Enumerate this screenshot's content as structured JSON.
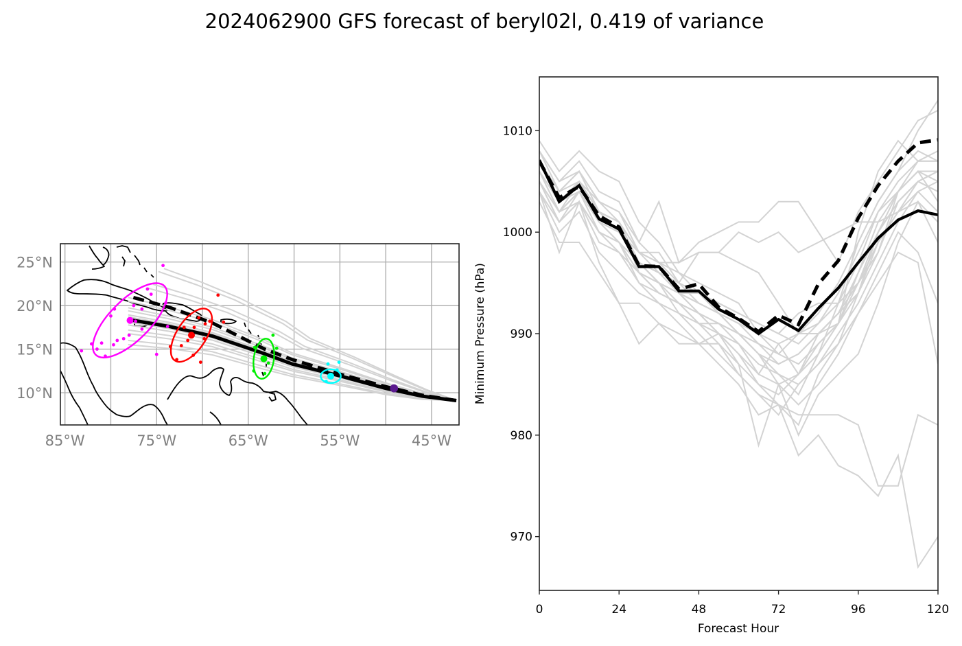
{
  "title": "2024062900 GFS forecast of beryl02l, 0.419 of variance",
  "colors": {
    "member": "#d3d3d3",
    "deterministic": "#000000",
    "coast": "#000000",
    "grid": "#b0b0b0",
    "map_label": "#808080",
    "ellipse_colors": [
      "#ff00ff",
      "#ff0000",
      "#00ee00",
      "#00ffff",
      "#5b1a8f"
    ]
  },
  "chart_data": [
    {
      "type": "scatter",
      "name": "track-map",
      "title": "",
      "xlabel": "",
      "ylabel": "",
      "xlim_lonW": [
        85.5,
        42.0
      ],
      "ylim_latN": [
        6.3,
        27.1
      ],
      "grid": true,
      "x_ticks": [
        "85°W",
        "75°W",
        "65°W",
        "55°W",
        "45°W"
      ],
      "x_tick_values": [
        85,
        75,
        65,
        55,
        45
      ],
      "y_ticks": [
        "10°N",
        "15°N",
        "20°N",
        "25°N"
      ],
      "y_tick_values": [
        10,
        15,
        20,
        25
      ],
      "deterministic_track": {
        "lonW": [
          42.3,
          46.0,
          50.0,
          54.9,
          60.2,
          63.3,
          68.9,
          73.6,
          78.1
        ],
        "latN": [
          9.1,
          9.6,
          10.5,
          11.9,
          13.3,
          14.5,
          16.5,
          17.6,
          18.4
        ]
      },
      "mean_track": {
        "lonW": [
          42.3,
          46.0,
          50.0,
          54.9,
          60.2,
          63.2,
          68.9,
          73.6,
          77.8
        ],
        "latN": [
          9.1,
          9.7,
          10.7,
          12.1,
          13.8,
          15.0,
          18.0,
          19.8,
          21.0
        ]
      },
      "ellipses": [
        {
          "label": "magenta",
          "center_lonW": 77.9,
          "center_latN": 18.3,
          "semi_major_deg": 5.3,
          "semi_minor_deg": 2.2,
          "angle_deg": -45
        },
        {
          "label": "red",
          "center_lonW": 71.2,
          "center_latN": 16.6,
          "semi_major_deg": 3.3,
          "semi_minor_deg": 1.6,
          "angle_deg": -57
        },
        {
          "label": "green",
          "center_lonW": 63.3,
          "center_latN": 13.9,
          "semi_major_deg": 2.2,
          "semi_minor_deg": 1.1,
          "angle_deg": 8
        },
        {
          "label": "cyan",
          "center_lonW": 56.0,
          "center_latN": 11.9,
          "semi_major_deg": 1.1,
          "semi_minor_deg": 0.75,
          "angle_deg": 0
        },
        {
          "label": "purple",
          "center_lonW": 49.1,
          "center_latN": 10.5,
          "semi_major_deg": 0.35,
          "semi_minor_deg": 0.3,
          "angle_deg": 0
        }
      ],
      "points": [
        {
          "group": 0,
          "lonW": 79.7,
          "latN": 15.5
        },
        {
          "group": 0,
          "lonW": 81.5,
          "latN": 15.0
        },
        {
          "group": 0,
          "lonW": 80.6,
          "latN": 14.2
        },
        {
          "group": 0,
          "lonW": 79.3,
          "latN": 16.0
        },
        {
          "group": 0,
          "lonW": 78.0,
          "latN": 16.6
        },
        {
          "group": 0,
          "lonW": 80.0,
          "latN": 18.8
        },
        {
          "group": 0,
          "lonW": 79.6,
          "latN": 19.6
        },
        {
          "group": 0,
          "lonW": 77.5,
          "latN": 20.0
        },
        {
          "group": 0,
          "lonW": 76.0,
          "latN": 21.9
        },
        {
          "group": 0,
          "lonW": 75.6,
          "latN": 21.3
        },
        {
          "group": 0,
          "lonW": 74.3,
          "latN": 24.6
        },
        {
          "group": 0,
          "lonW": 76.6,
          "latN": 19.6
        },
        {
          "group": 0,
          "lonW": 77.3,
          "latN": 18.2
        },
        {
          "group": 0,
          "lonW": 76.6,
          "latN": 17.3
        },
        {
          "group": 0,
          "lonW": 81.0,
          "latN": 15.7
        },
        {
          "group": 0,
          "lonW": 82.1,
          "latN": 15.6
        },
        {
          "group": 0,
          "lonW": 83.2,
          "latN": 14.8
        },
        {
          "group": 0,
          "lonW": 78.6,
          "latN": 16.2
        },
        {
          "group": 0,
          "lonW": 75.0,
          "latN": 14.4
        },
        {
          "group": 0,
          "lonW": 73.8,
          "latN": 17.6
        },
        {
          "group": 0,
          "lonW": 74.0,
          "latN": 20.3
        },
        {
          "group": 1,
          "lonW": 69.8,
          "latN": 16.2
        },
        {
          "group": 1,
          "lonW": 71.6,
          "latN": 16.0
        },
        {
          "group": 1,
          "lonW": 72.3,
          "latN": 15.4
        },
        {
          "group": 1,
          "lonW": 70.9,
          "latN": 17.5
        },
        {
          "group": 1,
          "lonW": 69.2,
          "latN": 18.2
        },
        {
          "group": 1,
          "lonW": 68.3,
          "latN": 21.2
        },
        {
          "group": 1,
          "lonW": 72.8,
          "latN": 13.8
        },
        {
          "group": 1,
          "lonW": 70.4,
          "latN": 18.6
        },
        {
          "group": 1,
          "lonW": 71.0,
          "latN": 14.3
        },
        {
          "group": 1,
          "lonW": 73.5,
          "latN": 15.3
        },
        {
          "group": 1,
          "lonW": 72.0,
          "latN": 17.5
        },
        {
          "group": 1,
          "lonW": 69.7,
          "latN": 17.9
        },
        {
          "group": 1,
          "lonW": 70.2,
          "latN": 13.5
        },
        {
          "group": 1,
          "lonW": 67.7,
          "latN": 18.1
        },
        {
          "group": 2,
          "lonW": 62.3,
          "latN": 16.6
        },
        {
          "group": 2,
          "lonW": 64.3,
          "latN": 15.2
        },
        {
          "group": 2,
          "lonW": 64.4,
          "latN": 12.5
        },
        {
          "group": 2,
          "lonW": 63.2,
          "latN": 12.2
        },
        {
          "group": 2,
          "lonW": 61.9,
          "latN": 15.1
        },
        {
          "group": 2,
          "lonW": 62.8,
          "latN": 13.4
        },
        {
          "group": 3,
          "lonW": 55.1,
          "latN": 13.5
        },
        {
          "group": 3,
          "lonW": 56.3,
          "latN": 13.3
        },
        {
          "group": 3,
          "lonW": 55.3,
          "latN": 12.6
        },
        {
          "group": 3,
          "lonW": 56.5,
          "latN": 11.3
        }
      ]
    },
    {
      "type": "line",
      "name": "pressure-chart",
      "title": "",
      "xlabel": "Forecast Hour",
      "ylabel": "Minimum Pressure (hPa)",
      "xlim": [
        0,
        120
      ],
      "ylim": [
        964.7,
        1015.3
      ],
      "x_ticks": [
        0,
        24,
        48,
        72,
        96,
        120
      ],
      "y_ticks": [
        970,
        980,
        990,
        1000,
        1010
      ],
      "grid": false,
      "x": [
        0,
        6,
        12,
        18,
        24,
        30,
        36,
        42,
        48,
        54,
        60,
        66,
        72,
        78,
        84,
        90,
        96,
        102,
        108,
        114,
        120
      ],
      "series": [
        {
          "name": "deterministic",
          "style": "solid",
          "values": [
            1007.1,
            1003.0,
            1004.6,
            1001.3,
            1000.3,
            996.6,
            996.6,
            994.2,
            994.2,
            992.4,
            991.4,
            990.0,
            991.4,
            990.3,
            992.5,
            994.5,
            997.0,
            999.4,
            1001.2,
            1002.1,
            1001.7
          ]
        },
        {
          "name": "ensemble-mean",
          "style": "dashed",
          "values": [
            1007.0,
            1003.4,
            1004.5,
            1001.6,
            1000.5,
            996.7,
            996.6,
            994.4,
            994.9,
            992.6,
            991.5,
            990.2,
            991.8,
            990.9,
            994.9,
            997.2,
            1001.4,
            1004.6,
            1007.0,
            1008.8,
            1009.1
          ]
        },
        {
          "name": "member-01",
          "style": "member",
          "values": [
            1009,
            1006,
            1008,
            1006,
            1005,
            1001,
            999,
            996,
            994,
            992,
            990,
            988,
            986,
            984,
            988,
            993,
            999,
            1003,
            1006,
            1010,
            1013
          ]
        },
        {
          "name": "member-02",
          "style": "member",
          "values": [
            1008,
            1005,
            1007,
            1004,
            1003,
            999,
            1003,
            997,
            999,
            1000,
            1001,
            1001,
            1003,
            1003,
            1000,
            997,
            1002,
            1005,
            1008,
            1011,
            1012
          ]
        },
        {
          "name": "member-03",
          "style": "member",
          "values": [
            1006,
            1002,
            1005,
            1002,
            1001,
            997,
            995,
            992,
            991,
            990,
            987,
            985,
            983,
            978,
            980,
            977,
            976,
            974,
            978,
            967,
            970
          ]
        },
        {
          "name": "member-04",
          "style": "member",
          "values": [
            1005,
            1001,
            1003,
            1000,
            999,
            995,
            993,
            991,
            989,
            987,
            985,
            982,
            983,
            982,
            982,
            982,
            981,
            975,
            975,
            982,
            981
          ]
        },
        {
          "name": "member-05",
          "style": "member",
          "values": [
            1004,
            998,
            1003,
            997,
            993,
            993,
            991,
            990,
            989,
            989,
            987,
            979,
            985,
            980,
            984,
            986,
            988,
            993,
            999,
            1003,
            999
          ]
        },
        {
          "name": "member-06",
          "style": "member",
          "values": [
            1003,
            999,
            999,
            996,
            993,
            989,
            991,
            989,
            989,
            990,
            988,
            986,
            989,
            986,
            990,
            991,
            1000,
            1006,
            1009,
            1007,
            1007
          ]
        },
        {
          "name": "member-07",
          "style": "member",
          "values": [
            1008,
            1004,
            1006,
            1002,
            1001,
            998,
            997,
            997,
            998,
            998,
            1000,
            999,
            1000,
            998,
            999,
            1000,
            1001,
            1001,
            1002,
            1003,
            1001
          ]
        },
        {
          "name": "member-08",
          "style": "member",
          "values": [
            1007,
            1004,
            1006,
            1003,
            1002,
            998,
            998,
            995,
            998,
            998,
            997,
            996,
            993,
            990,
            990,
            992,
            994,
            1000,
            1003,
            1005,
            1004
          ]
        },
        {
          "name": "member-09",
          "style": "member",
          "values": [
            1006,
            1003,
            1005,
            1002,
            1001,
            996,
            995,
            994,
            994,
            993,
            992,
            991,
            990,
            992,
            993,
            993,
            995,
            998,
            1004,
            1006,
            1005
          ]
        },
        {
          "name": "member-10",
          "style": "member",
          "values": [
            1005,
            1002,
            1004,
            1001,
            999,
            997,
            996,
            994,
            993,
            992,
            990,
            988,
            987,
            988,
            990,
            992,
            996,
            1001,
            1004,
            1007,
            1008
          ]
        },
        {
          "name": "member-11",
          "style": "member",
          "values": [
            1004,
            1001,
            1003,
            1000,
            998,
            996,
            994,
            993,
            992,
            991,
            989,
            986,
            985,
            986,
            989,
            991,
            996,
            1000,
            1003,
            1005,
            1006
          ]
        },
        {
          "name": "member-12",
          "style": "member",
          "values": [
            1006,
            1002,
            1004,
            1001,
            1000,
            997,
            996,
            994,
            992,
            990,
            988,
            985,
            984,
            986,
            988,
            991,
            995,
            1000,
            1004,
            1006,
            1003
          ]
        },
        {
          "name": "member-13",
          "style": "member",
          "values": [
            1007,
            1003,
            1005,
            1002,
            1001,
            997,
            995,
            993,
            991,
            989,
            986,
            984,
            983,
            981,
            986,
            989,
            994,
            999,
            1002,
            1004,
            1002
          ]
        },
        {
          "name": "member-14",
          "style": "member",
          "values": [
            1005,
            1002,
            1003,
            999,
            998,
            995,
            994,
            993,
            991,
            991,
            990,
            989,
            988,
            990,
            991,
            993,
            997,
            1002,
            1005,
            1007,
            1007
          ]
        },
        {
          "name": "member-15",
          "style": "member",
          "values": [
            1004,
            1000,
            1002,
            998,
            996,
            994,
            993,
            992,
            990,
            988,
            986,
            984,
            982,
            985,
            987,
            990,
            993,
            997,
            1001,
            1004,
            1005
          ]
        },
        {
          "name": "member-16",
          "style": "member",
          "values": [
            1006,
            1003,
            1004,
            1001,
            999,
            996,
            995,
            994,
            993,
            992,
            991,
            989,
            987,
            988,
            990,
            992,
            995,
            999,
            1002,
            1005,
            1006
          ]
        },
        {
          "name": "member-17",
          "style": "member",
          "values": [
            1007,
            1004,
            1005,
            1003,
            1001,
            998,
            997,
            996,
            995,
            994,
            993,
            990,
            988,
            987,
            989,
            991,
            994,
            998,
            1003,
            1005,
            1004
          ]
        },
        {
          "name": "member-18",
          "style": "member",
          "values": [
            1005,
            1001,
            1004,
            1000,
            999,
            996,
            994,
            993,
            992,
            990,
            989,
            987,
            986,
            985,
            987,
            989,
            992,
            996,
            1000,
            998,
            993
          ]
        },
        {
          "name": "member-19",
          "style": "member",
          "values": [
            1008,
            1005,
            1006,
            1003,
            1002,
            999,
            997,
            995,
            994,
            993,
            992,
            991,
            990,
            989,
            991,
            994,
            998,
            1002,
            1004,
            1006,
            1006
          ]
        },
        {
          "name": "member-20",
          "style": "member",
          "values": [
            1005,
            1002,
            1004,
            1001,
            1000,
            997,
            995,
            994,
            992,
            991,
            990,
            988,
            985,
            983,
            985,
            988,
            992,
            995,
            998,
            997,
            987
          ]
        },
        {
          "name": "member-21",
          "style": "member",
          "values": [
            1006,
            1003,
            1005,
            1002,
            1000,
            998,
            996,
            995,
            993,
            992,
            991,
            990,
            989,
            990,
            992,
            995,
            999,
            1003,
            1006,
            1008,
            1007
          ]
        }
      ]
    }
  ]
}
